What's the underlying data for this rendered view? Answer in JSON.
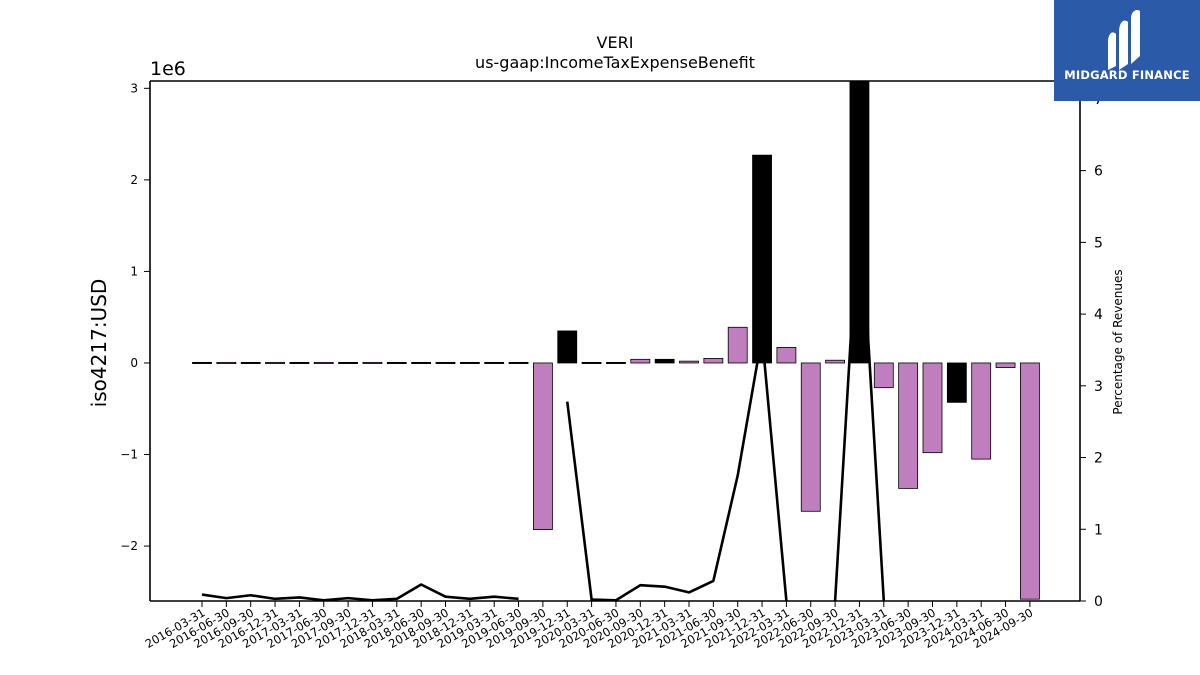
{
  "chart_data": {
    "type": "bar+line",
    "title": "VERI",
    "subtitle": "us-gaap:IncomeTaxExpenseBenefit",
    "ylabel": "iso4217:USD",
    "y_offset_label": "1e6",
    "y2label": "Percentage of Revenues",
    "ylim": [
      -2.6,
      3.08
    ],
    "y2lim": [
      0,
      7.25
    ],
    "yticks": [
      -2,
      -1,
      0,
      1,
      2,
      3
    ],
    "yticklabels": [
      "−2",
      "−1",
      "0",
      "1",
      "2",
      "3"
    ],
    "y2ticks": [
      0,
      1,
      2,
      3,
      4,
      5,
      6,
      7
    ],
    "categories": [
      "2016-03-31",
      "2016-06-30",
      "2016-09-30",
      "2016-12-31",
      "2017-03-31",
      "2017-06-30",
      "2017-09-30",
      "2017-12-31",
      "2018-03-31",
      "2018-06-30",
      "2018-09-30",
      "2018-12-31",
      "2019-03-31",
      "2019-06-30",
      "2019-09-30",
      "2019-12-31",
      "2020-03-31",
      "2020-06-30",
      "2020-09-30",
      "2020-12-31",
      "2021-03-31",
      "2021-06-30",
      "2021-09-30",
      "2021-12-31",
      "2022-03-31",
      "2022-06-30",
      "2022-09-30",
      "2022-12-31",
      "2023-03-31",
      "2023-06-30",
      "2023-09-30",
      "2023-12-31",
      "2024-03-31",
      "2024-06-30",
      "2024-09-30"
    ],
    "series": [
      {
        "kind": "bar",
        "values": [
          0.005,
          -0.008,
          0.004,
          -0.006,
          0.008,
          -0.01,
          0.006,
          -0.008,
          0.007,
          0.005,
          0.004,
          0.006,
          0.005,
          0.004,
          -1.82,
          0.35,
          0.004,
          0.003,
          0.04,
          0.04,
          0.02,
          0.05,
          0.39,
          2.27,
          0.17,
          -1.62,
          0.03,
          3.08,
          -0.27,
          -1.37,
          -0.98,
          -0.43,
          -1.05,
          -0.05,
          -2.58
        ],
        "colors": [
          "#000000",
          "#bf7fbf",
          "#000000",
          "#bf7fbf",
          "#000000",
          "#bf7fbf",
          "#000000",
          "#bf7fbf",
          "#000000",
          "#000000",
          "#000000",
          "#000000",
          "#000000",
          "#000000",
          "#bf7fbf",
          "#000000",
          "#000000",
          "#000000",
          "#bf7fbf",
          "#000000",
          "#bf7fbf",
          "#bf7fbf",
          "#bf7fbf",
          "#000000",
          "#bf7fbf",
          "#bf7fbf",
          "#bf7fbf",
          "#000000",
          "#bf7fbf",
          "#bf7fbf",
          "#bf7fbf",
          "#000000",
          "#bf7fbf",
          "#bf7fbf",
          "#bf7fbf"
        ]
      },
      {
        "kind": "line",
        "axis": "right",
        "color": "#000000",
        "values": [
          0.09,
          0.04,
          0.08,
          0.03,
          0.05,
          0.01,
          0.04,
          0.01,
          0.03,
          0.23,
          0.06,
          0.03,
          0.06,
          0.03,
          null,
          2.78,
          0.02,
          0.01,
          0.22,
          0.2,
          0.12,
          0.28,
          1.75,
          3.7,
          0.0,
          null,
          0.0,
          5.7,
          0.0,
          null,
          null,
          null,
          null,
          null,
          null
        ]
      }
    ],
    "grid": false
  },
  "branding": {
    "name": "MIDGARD FINANCE",
    "color": "#2b5aa8"
  }
}
